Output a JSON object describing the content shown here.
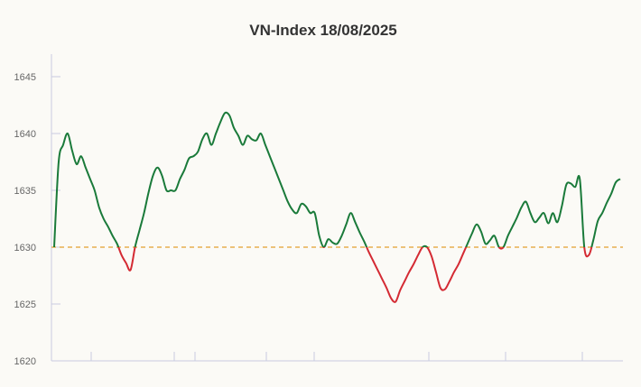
{
  "chart_data": {
    "type": "line",
    "title": "VN-Index 18/08/2025",
    "xlabel": "",
    "ylabel": "",
    "ylim": [
      1620,
      1645
    ],
    "yticks": [
      1620,
      1625,
      1630,
      1635,
      1640,
      1645
    ],
    "reference_line": {
      "value": 1630,
      "style": "dashed"
    },
    "grid": false,
    "colors": {
      "above": "#1a7a3a",
      "below": "#d42a33",
      "reference": "#e3a12f",
      "axis": "#c8cbe0"
    },
    "series": [
      {
        "values": [
          1630,
          1637.5,
          1639,
          1640,
          1638.5,
          1637.3,
          1638,
          1637,
          1636,
          1635,
          1633.5,
          1632.5,
          1631.8,
          1631,
          1630.3,
          1629.3,
          1628.6,
          1628,
          1630,
          1631.5,
          1633,
          1634.8,
          1636.3,
          1637,
          1636.3,
          1635,
          1635,
          1635,
          1636,
          1636.8,
          1637.8,
          1638,
          1638.4,
          1639.5,
          1640,
          1639,
          1640,
          1641,
          1641.8,
          1641.6,
          1640.5,
          1639.8,
          1639,
          1639.8,
          1639.5,
          1639.4,
          1640,
          1639,
          1638,
          1637,
          1636,
          1635,
          1634,
          1633.3,
          1633,
          1633.8,
          1633.6,
          1633,
          1633,
          1631,
          1630,
          1630.7,
          1630.4,
          1630.3,
          1631,
          1632,
          1633,
          1632.2,
          1631.3,
          1630.5,
          1629.6,
          1628.8,
          1628,
          1627.2,
          1626.4,
          1625.5,
          1625.2,
          1626.2,
          1627,
          1627.8,
          1628.5,
          1629.3,
          1630,
          1630,
          1629.2,
          1627.8,
          1626.4,
          1626.3,
          1627,
          1627.8,
          1628.5,
          1629.4,
          1630.3,
          1631.2,
          1632,
          1631.4,
          1630.3,
          1630.6,
          1631,
          1630,
          1630,
          1631,
          1631.8,
          1632.6,
          1633.5,
          1634,
          1633,
          1632.2,
          1632.6,
          1633,
          1632.1,
          1633,
          1632.2,
          1633.6,
          1635.5,
          1635.6,
          1635.3,
          1636,
          1630,
          1629.3,
          1630.6,
          1632.3,
          1633,
          1633.9,
          1634.7,
          1635.7,
          1636
        ]
      }
    ]
  }
}
